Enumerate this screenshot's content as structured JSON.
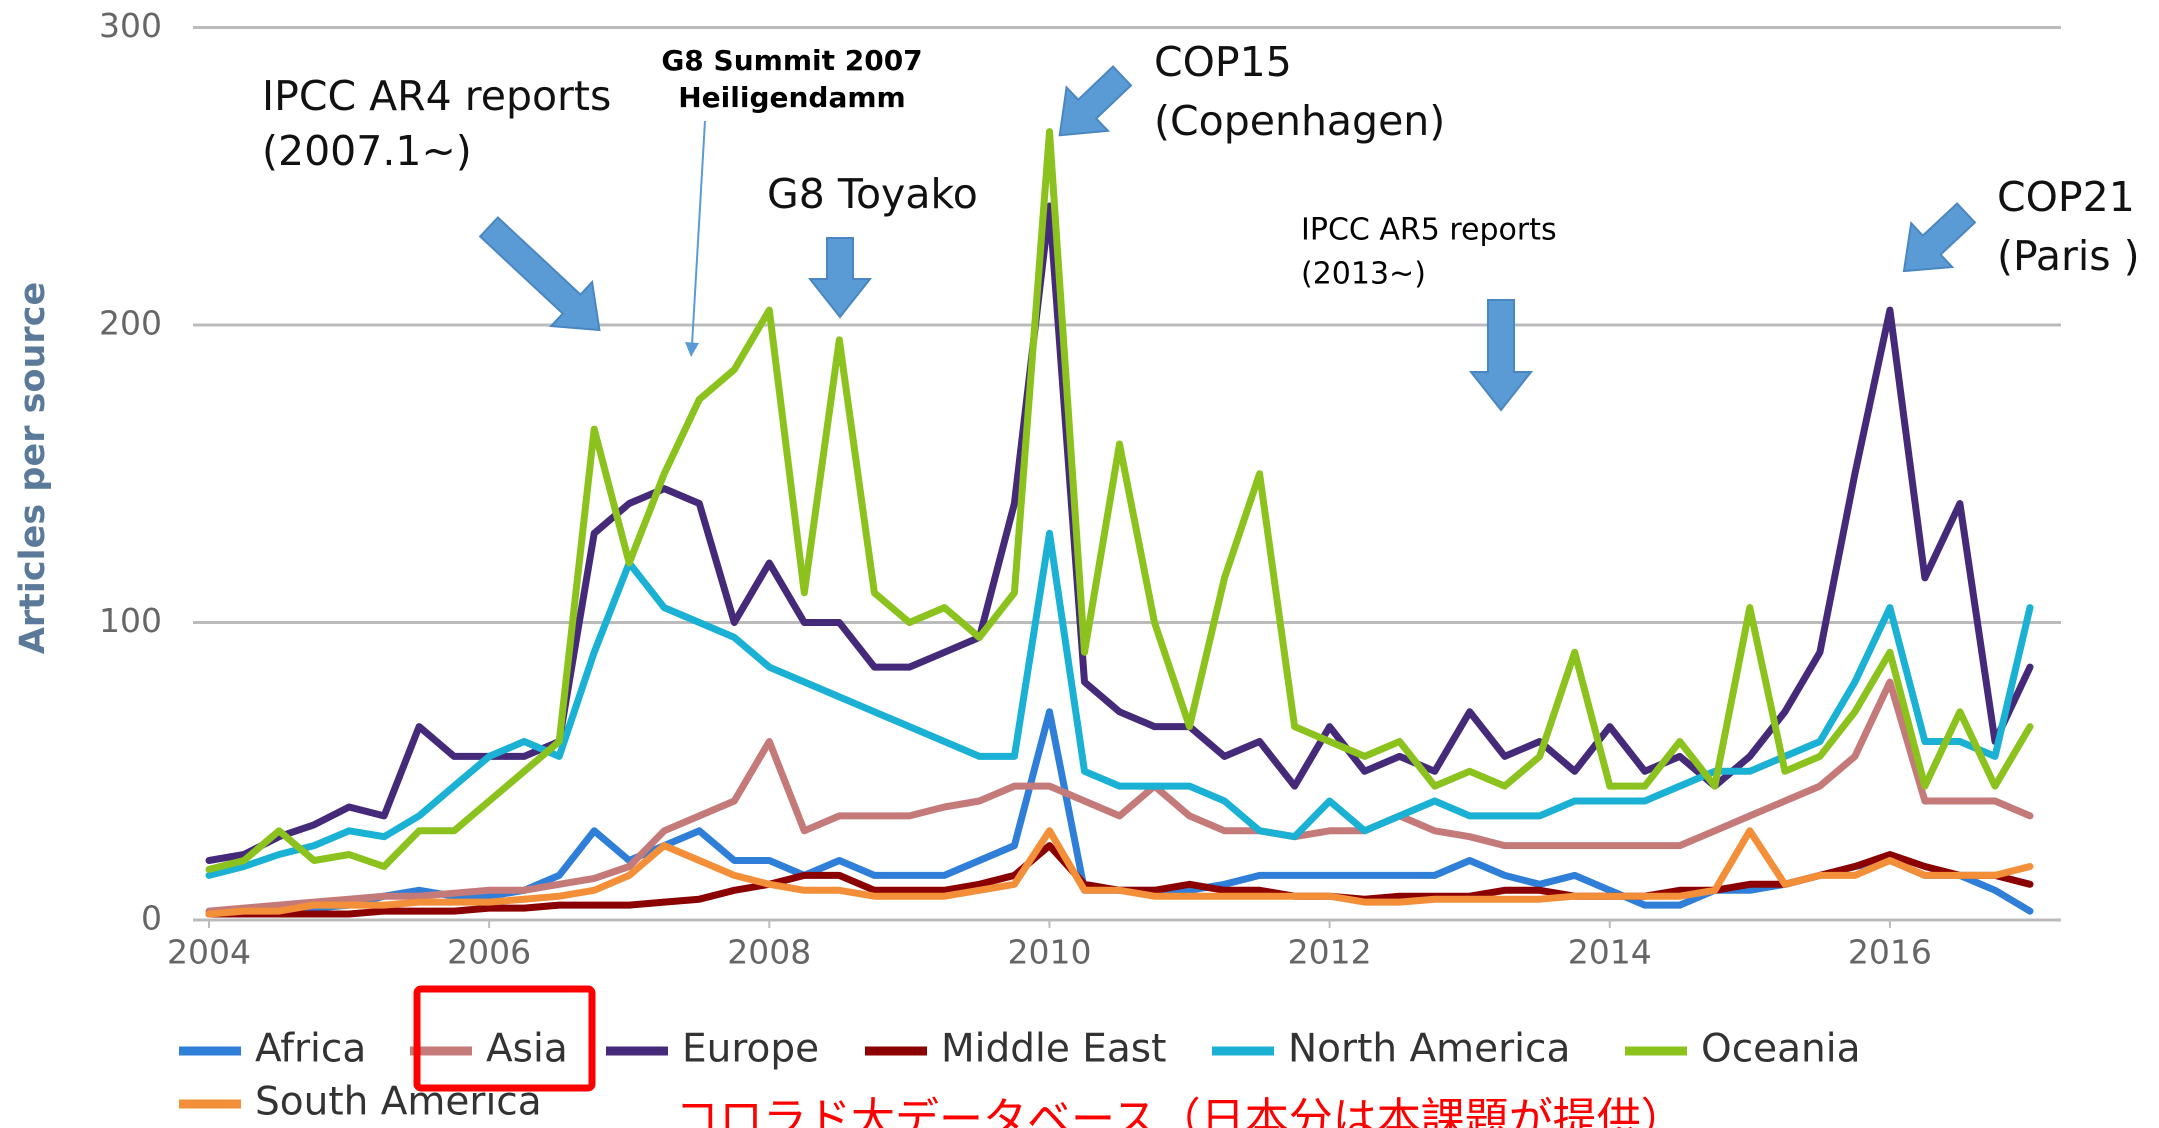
{
  "chart_data": {
    "type": "line",
    "ylabel": "Articles per source",
    "x": [
      2004,
      2004.25,
      2004.5,
      2004.75,
      2005,
      2005.25,
      2005.5,
      2005.75,
      2006,
      2006.25,
      2006.5,
      2006.75,
      2007,
      2007.25,
      2007.5,
      2007.75,
      2008,
      2008.25,
      2008.5,
      2008.75,
      2009,
      2009.25,
      2009.5,
      2009.75,
      2010,
      2010.25,
      2010.5,
      2010.75,
      2011,
      2011.25,
      2011.5,
      2011.75,
      2012,
      2012.25,
      2012.5,
      2012.75,
      2013,
      2013.25,
      2013.5,
      2013.75,
      2014,
      2014.25,
      2014.5,
      2014.75,
      2015,
      2015.25,
      2015.5,
      2015.75,
      2016,
      2016.25,
      2016.5,
      2016.75,
      2017
    ],
    "xlim": [
      2004,
      2017.2
    ],
    "xticks": [
      2004,
      2006,
      2008,
      2010,
      2012,
      2014,
      2016
    ],
    "ylim": [
      0,
      300
    ],
    "yticks": [
      0,
      100,
      200,
      300
    ],
    "grid": true,
    "series": [
      {
        "name": "Africa",
        "color": "#2f7ed8",
        "values": [
          2,
          3,
          3,
          4,
          5,
          8,
          10,
          8,
          8,
          10,
          15,
          30,
          20,
          25,
          30,
          20,
          20,
          15,
          20,
          15,
          15,
          15,
          20,
          25,
          70,
          10,
          10,
          10,
          10,
          12,
          15,
          15,
          15,
          15,
          15,
          15,
          20,
          15,
          12,
          15,
          10,
          5,
          5,
          10,
          10,
          12,
          15,
          18,
          20,
          15,
          15,
          10,
          3
        ]
      },
      {
        "name": "Asia",
        "color": "#c57a7a",
        "values": [
          3,
          4,
          5,
          6,
          7,
          8,
          8,
          9,
          10,
          10,
          12,
          14,
          18,
          30,
          35,
          40,
          60,
          30,
          35,
          35,
          35,
          38,
          40,
          45,
          45,
          40,
          35,
          45,
          35,
          30,
          30,
          28,
          30,
          30,
          35,
          30,
          28,
          25,
          25,
          25,
          25,
          25,
          25,
          30,
          35,
          40,
          45,
          55,
          80,
          40,
          40,
          40,
          35
        ]
      },
      {
        "name": "Europe",
        "color": "#452a7a",
        "values": [
          20,
          22,
          28,
          32,
          38,
          35,
          65,
          55,
          55,
          55,
          60,
          130,
          140,
          145,
          140,
          100,
          120,
          100,
          100,
          85,
          85,
          90,
          95,
          140,
          240,
          80,
          70,
          65,
          65,
          55,
          60,
          45,
          65,
          50,
          55,
          50,
          70,
          55,
          60,
          50,
          65,
          50,
          55,
          45,
          55,
          70,
          90,
          150,
          205,
          115,
          140,
          60,
          85
        ]
      },
      {
        "name": "Middle East",
        "color": "#8b0000",
        "values": [
          2,
          2,
          2,
          2,
          2,
          3,
          3,
          3,
          4,
          4,
          5,
          5,
          5,
          6,
          7,
          10,
          12,
          15,
          15,
          10,
          10,
          10,
          12,
          15,
          25,
          12,
          10,
          10,
          12,
          10,
          10,
          8,
          8,
          7,
          8,
          8,
          8,
          10,
          10,
          8,
          8,
          8,
          10,
          10,
          12,
          12,
          15,
          18,
          22,
          18,
          15,
          15,
          12
        ]
      },
      {
        "name": "North America",
        "color": "#1ab1d4",
        "values": [
          15,
          18,
          22,
          25,
          30,
          28,
          35,
          45,
          55,
          60,
          55,
          90,
          120,
          105,
          100,
          95,
          85,
          80,
          75,
          70,
          65,
          60,
          55,
          55,
          130,
          50,
          45,
          45,
          45,
          40,
          30,
          28,
          40,
          30,
          35,
          40,
          35,
          35,
          35,
          40,
          40,
          40,
          45,
          50,
          50,
          55,
          60,
          80,
          105,
          60,
          60,
          55,
          105
        ]
      },
      {
        "name": "Oceania",
        "color": "#8cc21d",
        "values": [
          17,
          20,
          30,
          20,
          22,
          18,
          30,
          30,
          40,
          50,
          60,
          165,
          120,
          150,
          175,
          185,
          205,
          110,
          195,
          110,
          100,
          105,
          95,
          110,
          265,
          90,
          160,
          100,
          65,
          115,
          150,
          65,
          60,
          55,
          60,
          45,
          50,
          45,
          55,
          90,
          45,
          45,
          60,
          45,
          105,
          50,
          55,
          70,
          90,
          45,
          70,
          45,
          65
        ]
      },
      {
        "name": "South America",
        "color": "#f28f38",
        "values": [
          2,
          3,
          3,
          5,
          5,
          5,
          6,
          6,
          6,
          7,
          8,
          10,
          15,
          25,
          20,
          15,
          12,
          10,
          10,
          8,
          8,
          8,
          10,
          12,
          30,
          10,
          10,
          8,
          8,
          8,
          8,
          8,
          8,
          6,
          6,
          7,
          7,
          7,
          7,
          8,
          8,
          8,
          8,
          10,
          30,
          12,
          15,
          15,
          20,
          15,
          15,
          15,
          18
        ]
      }
    ],
    "annotations": [
      "IPCC AR4 reports",
      "(2007.1~)",
      "G8 Summit 2007",
      "Heiligendamm",
      "COP15",
      "(Copenhagen)",
      "G8 Toyako",
      "IPCC AR5 reports",
      "(2013~)",
      "COP21",
      "(Paris )"
    ],
    "source_note": "コロラド大データベース（日本分は本課題が提供）"
  }
}
